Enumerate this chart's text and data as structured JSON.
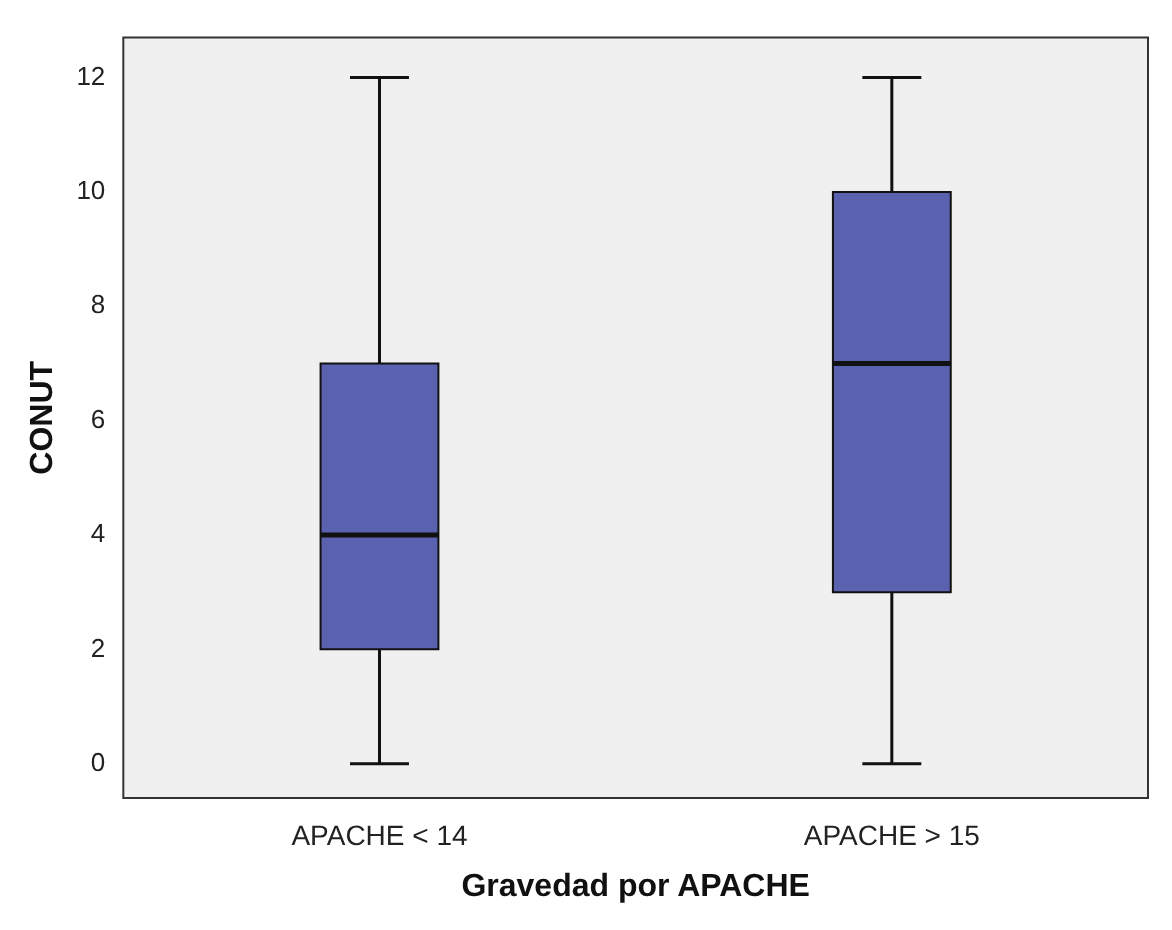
{
  "chart_data": {
    "type": "box",
    "xlabel": "Gravedad por APACHE",
    "ylabel": "CONUT",
    "categories": [
      "APACHE < 14",
      "APACHE > 15"
    ],
    "color": "#5a62b0",
    "boxes": [
      {
        "low": 0,
        "q1": 2,
        "median": 4,
        "q3": 7,
        "high": 12
      },
      {
        "low": 0,
        "q1": 3,
        "median": 7,
        "q3": 10,
        "high": 12
      }
    ],
    "ylim": [
      -0.6,
      12.7
    ],
    "yticks": [
      0,
      2,
      4,
      6,
      8,
      10,
      12
    ],
    "grid": false,
    "legend": false
  }
}
